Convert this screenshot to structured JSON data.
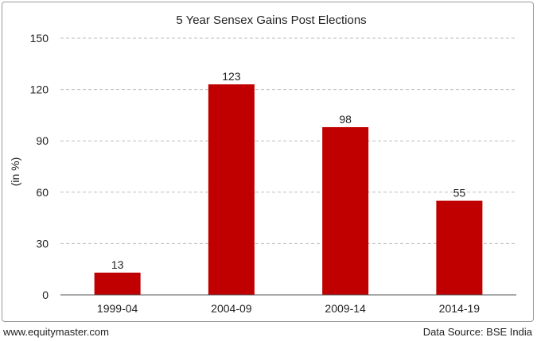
{
  "chart_data": {
    "type": "bar",
    "title": "5 Year Sensex Gains Post Elections",
    "ylabel": "(in %)",
    "xlabel": "",
    "categories": [
      "1999-04",
      "2004-09",
      "2009-14",
      "2014-19"
    ],
    "values": [
      13,
      123,
      98,
      55
    ],
    "data_labels": [
      "13",
      "123",
      "98",
      "55"
    ],
    "ylim": [
      0,
      150
    ],
    "yticks": [
      0,
      30,
      60,
      90,
      120,
      150
    ],
    "ytick_labels": [
      "0",
      "30",
      "60",
      "90",
      "120",
      "150"
    ],
    "grid": true,
    "bar_color": "#c00000"
  },
  "footer": {
    "website": "www.equitymaster.com",
    "source": "Data Source: BSE India"
  }
}
